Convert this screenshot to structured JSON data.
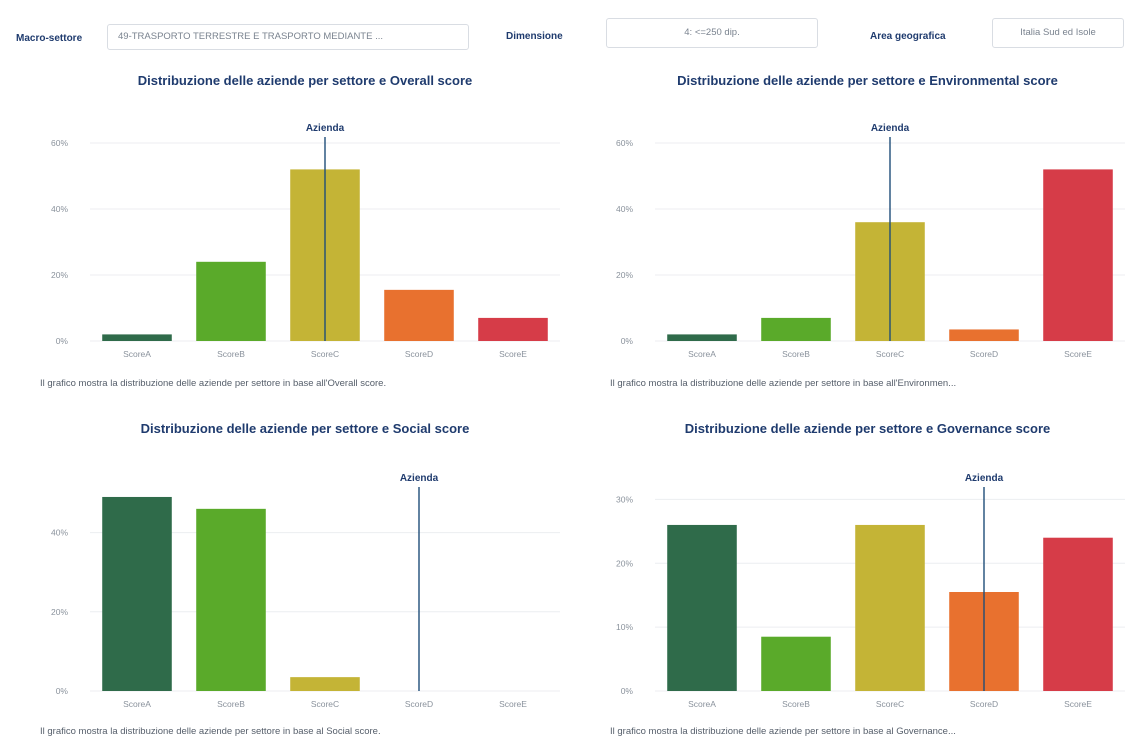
{
  "filters": {
    "macro_label": "Macro-settore",
    "macro_value": "49-TRASPORTO TERRESTRE E TRASPORTO MEDIANTE ...",
    "size_label": "Dimensione",
    "size_value": "4: <=250 dip.",
    "area_label": "Area geografica",
    "area_value": "Italia Sud ed Isole"
  },
  "colors": {
    "ScoreA": "#2f6b4a",
    "ScoreB": "#5aaa2a",
    "ScoreC": "#c4b436",
    "ScoreD": "#e8712f",
    "ScoreE": "#d63c48",
    "marker": "#1f4e79",
    "grid": "#eceef1"
  },
  "chart_data": [
    {
      "type": "bar",
      "title": "Distribuzione delle aziende per settore e Overall score",
      "caption": "Il grafico mostra la distribuzione delle aziende per settore in base all'Overall score.",
      "categories": [
        "ScoreA",
        "ScoreB",
        "ScoreC",
        "ScoreD",
        "ScoreE"
      ],
      "values": [
        2,
        24,
        52,
        15.5,
        7
      ],
      "ylim": [
        0,
        60
      ],
      "yticks": [
        0,
        20,
        40,
        60
      ],
      "yticklabels": [
        "0%",
        "20%",
        "40%",
        "60%"
      ],
      "marker": {
        "label": "Azienda",
        "category": "ScoreC"
      },
      "grid": true
    },
    {
      "type": "bar",
      "title": "Distribuzione delle aziende per settore e Environmental score",
      "caption": "Il grafico mostra la distribuzione delle aziende per settore in base all'Environmen...",
      "categories": [
        "ScoreA",
        "ScoreB",
        "ScoreC",
        "ScoreD",
        "ScoreE"
      ],
      "values": [
        2,
        7,
        36,
        3.5,
        52
      ],
      "ylim": [
        0,
        60
      ],
      "yticks": [
        0,
        20,
        40,
        60
      ],
      "yticklabels": [
        "0%",
        "20%",
        "40%",
        "60%"
      ],
      "marker": {
        "label": "Azienda",
        "category": "ScoreC"
      },
      "grid": true
    },
    {
      "type": "bar",
      "title": "Distribuzione delle aziende per settore e Social score",
      "caption": "Il grafico mostra la distribuzione delle aziende per settore in base al Social score.",
      "categories": [
        "ScoreA",
        "ScoreB",
        "ScoreC",
        "ScoreD",
        "ScoreE"
      ],
      "values": [
        49,
        46,
        3.5,
        0,
        0
      ],
      "ylim": [
        0,
        50
      ],
      "yticks": [
        0,
        20,
        40
      ],
      "yticklabels": [
        "0%",
        "20%",
        "40%"
      ],
      "marker": {
        "label": "Azienda",
        "category": "ScoreD"
      },
      "grid": true
    },
    {
      "type": "bar",
      "title": "Distribuzione delle aziende per settore e Governance score",
      "caption": "Il grafico mostra la distribuzione delle aziende per settore in base al Governance...",
      "categories": [
        "ScoreA",
        "ScoreB",
        "ScoreC",
        "ScoreD",
        "ScoreE"
      ],
      "values": [
        26,
        8.5,
        26,
        15.5,
        24
      ],
      "ylim": [
        0,
        31
      ],
      "yticks": [
        0,
        10,
        20,
        30
      ],
      "yticklabels": [
        "0%",
        "10%",
        "20%",
        "30%"
      ],
      "marker": {
        "label": "Azienda",
        "category": "ScoreD"
      },
      "grid": true
    }
  ]
}
